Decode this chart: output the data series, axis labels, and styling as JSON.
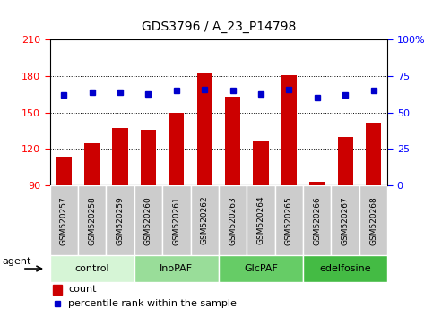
{
  "title": "GDS3796 / A_23_P14798",
  "samples": [
    "GSM520257",
    "GSM520258",
    "GSM520259",
    "GSM520260",
    "GSM520261",
    "GSM520262",
    "GSM520263",
    "GSM520264",
    "GSM520265",
    "GSM520266",
    "GSM520267",
    "GSM520268"
  ],
  "counts": [
    114,
    125,
    137,
    136,
    150,
    183,
    163,
    127,
    181,
    93,
    130,
    142
  ],
  "percentile_ranks_pct": [
    62,
    64,
    64,
    63,
    65,
    66,
    65,
    63,
    66,
    60,
    62,
    65
  ],
  "ymin": 90,
  "ymax": 210,
  "yticks_left": [
    90,
    120,
    150,
    180,
    210
  ],
  "yticks_right": [
    0,
    25,
    50,
    75,
    100
  ],
  "y2min": 0,
  "y2max": 100,
  "bar_color": "#cc0000",
  "dot_color": "#0000cc",
  "bar_width": 0.55,
  "groups": [
    {
      "label": "control",
      "start": 0,
      "end": 3,
      "color": "#d6f5d6"
    },
    {
      "label": "InoPAF",
      "start": 3,
      "end": 6,
      "color": "#99dd99"
    },
    {
      "label": "GlcPAF",
      "start": 6,
      "end": 9,
      "color": "#66cc66"
    },
    {
      "label": "edelfosine",
      "start": 9,
      "end": 12,
      "color": "#44bb44"
    }
  ],
  "agent_label": "agent",
  "legend_count": "count",
  "legend_pct": "percentile rank within the sample",
  "bg_plot": "#ffffff",
  "sample_bg": "#cccccc",
  "gridline_color": "#000000",
  "title_fontsize": 10,
  "axis_fontsize": 8,
  "tick_fontsize": 8
}
